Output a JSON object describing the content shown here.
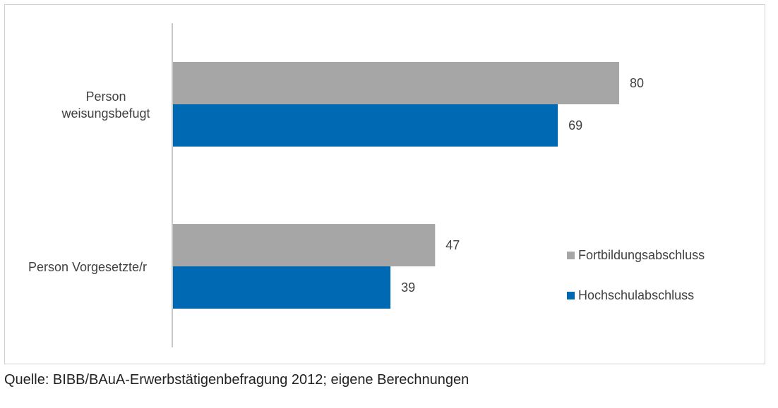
{
  "chart_data": {
    "type": "bar",
    "orientation": "horizontal",
    "categories": [
      [
        "Person",
        "weisungsbefugt"
      ],
      [
        "Person Vorgesetzte/r"
      ]
    ],
    "series": [
      {
        "name": "Fortbildungsabschluss",
        "values": [
          80,
          47
        ],
        "color": "#a6a6a6"
      },
      {
        "name": "Hochschulabschluss",
        "values": [
          69,
          39
        ],
        "color": "#0069b4"
      }
    ],
    "xlim": [
      0,
      100
    ],
    "grid": false,
    "legend_position": "right"
  },
  "source_note": "Quelle: BIBB/BAuA-Erwerbstätigenbefragung 2012; eigene Berechnungen"
}
